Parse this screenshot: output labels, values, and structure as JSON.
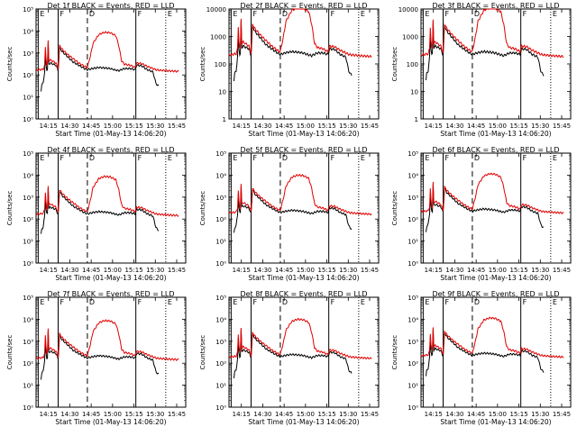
{
  "chart_data": [
    {
      "type": "line",
      "title": "Det  1f BLACK = Events, RED = LLD",
      "ylabel": "Counts/sec",
      "xlabel": "Start Time (01-May-13 14:06:20)",
      "log_min": 0,
      "log_max": 5,
      "yticks": [
        "10⁰",
        "10¹",
        "10²",
        "10³",
        "10⁴",
        "10⁵"
      ]
    },
    {
      "type": "line",
      "title": "Det  2f BLACK = Events, RED = LLD",
      "ylabel": "Counts/sec",
      "xlabel": "Start Time (01-May-13 14:06:20)",
      "log_min": 0,
      "log_max": 4,
      "yticks": [
        "1",
        "10",
        "100",
        "1000",
        "10000"
      ]
    },
    {
      "type": "line",
      "title": "Det  3f BLACK = Events, RED = LLD",
      "ylabel": "Counts/sec",
      "xlabel": "Start Time (01-May-13 14:06:20)",
      "log_min": 0,
      "log_max": 4,
      "yticks": [
        "1",
        "10",
        "100",
        "1000",
        "10000"
      ]
    },
    {
      "type": "line",
      "title": "Det  4f BLACK = Events, RED = LLD",
      "ylabel": "Counts/sec",
      "xlabel": "Start Time (01-May-13 14:06:20)",
      "log_min": 0,
      "log_max": 5,
      "yticks": [
        "10⁰",
        "10¹",
        "10²",
        "10³",
        "10⁴",
        "10⁵"
      ]
    },
    {
      "type": "line",
      "title": "Det  5f BLACK = Events, RED = LLD",
      "ylabel": "Counts/sec",
      "xlabel": "Start Time (01-May-13 14:06:20)",
      "log_min": 0,
      "log_max": 5,
      "yticks": [
        "10⁰",
        "10¹",
        "10²",
        "10³",
        "10⁴",
        "10⁵"
      ]
    },
    {
      "type": "line",
      "title": "Det  6f BLACK = Events, RED = LLD",
      "ylabel": "Counts/sec",
      "xlabel": "Start Time (01-May-13 14:06:20)",
      "log_min": 0,
      "log_max": 5,
      "yticks": [
        "10⁰",
        "10¹",
        "10²",
        "10³",
        "10⁴",
        "10⁵"
      ]
    },
    {
      "type": "line",
      "title": "Det  7f BLACK = Events, RED = LLD",
      "ylabel": "Counts/sec",
      "xlabel": "Start Time (01-May-13 14:06:20)",
      "log_min": 0,
      "log_max": 5,
      "yticks": [
        "10⁰",
        "10¹",
        "10²",
        "10³",
        "10⁴",
        "10⁵"
      ]
    },
    {
      "type": "line",
      "title": "Det  8f BLACK = Events, RED = LLD",
      "ylabel": "Counts/sec",
      "xlabel": "Start Time (01-May-13 14:06:20)",
      "log_min": 0,
      "log_max": 5,
      "yticks": [
        "10⁰",
        "10¹",
        "10²",
        "10³",
        "10⁴",
        "10⁵"
      ]
    },
    {
      "type": "line",
      "title": "Det  9f BLACK = Events, RED = LLD",
      "ylabel": "Counts/sec",
      "xlabel": "Start Time (01-May-13 14:06:20)",
      "log_min": 0,
      "log_max": 5,
      "yticks": [
        "10⁰",
        "10¹",
        "10²",
        "10³",
        "10⁴",
        "10⁵"
      ]
    }
  ],
  "xticks": [
    "14:15",
    "14:30",
    "14:45",
    "15:00",
    "15:15",
    "15:30",
    "15:45"
  ],
  "xtick_minutes": [
    8.67,
    23.67,
    38.67,
    53.67,
    68.67,
    83.67,
    98.67
  ],
  "x_range_minutes": [
    0,
    105
  ],
  "marker_minutes": [
    {
      "t": 1.5,
      "label": "E",
      "style": "solid"
    },
    {
      "t": 15.5,
      "label": "F",
      "style": "solid"
    },
    {
      "t": 36,
      "label": "D",
      "style": "dashed"
    },
    {
      "t": 70,
      "label": "F",
      "style": "solid"
    },
    {
      "t": 91,
      "label": "E",
      "style": "dotted"
    }
  ],
  "series_styles": [
    {
      "name": "Events",
      "color": "#000000"
    },
    {
      "name": "LLD",
      "color": "#e00000"
    }
  ],
  "profiles": {
    "lld_log": [
      [
        0,
        2.28
      ],
      [
        3,
        2.3
      ],
      [
        5,
        2.32
      ],
      [
        6,
        2.5
      ],
      [
        6.5,
        3.3
      ],
      [
        7.2,
        2.6
      ],
      [
        8,
        2.5
      ],
      [
        8.5,
        3.6
      ],
      [
        9,
        2.7
      ],
      [
        10,
        2.75
      ],
      [
        14,
        2.6
      ],
      [
        15.5,
        2.35
      ],
      [
        16.5,
        3.4
      ],
      [
        18,
        3.25
      ],
      [
        22,
        3.0
      ],
      [
        26,
        2.8
      ],
      [
        30,
        2.6
      ],
      [
        34,
        2.45
      ],
      [
        36,
        2.4
      ],
      [
        38,
        2.9
      ],
      [
        40,
        3.5
      ],
      [
        44,
        3.9
      ],
      [
        48,
        4.0
      ],
      [
        52,
        3.98
      ],
      [
        56,
        3.85
      ],
      [
        58,
        3.4
      ],
      [
        60,
        2.7
      ],
      [
        62,
        2.55
      ],
      [
        66,
        2.5
      ],
      [
        69.5,
        2.4
      ],
      [
        70.5,
        2.6
      ],
      [
        74,
        2.58
      ],
      [
        78,
        2.45
      ],
      [
        82,
        2.35
      ],
      [
        84,
        2.3
      ],
      [
        86,
        2.28
      ],
      [
        92,
        2.25
      ],
      [
        100,
        2.22
      ]
    ],
    "events_log": [
      [
        3.5,
        1.35
      ],
      [
        4,
        1.6
      ],
      [
        5,
        1.7
      ],
      [
        6,
        2.2
      ],
      [
        6.5,
        3.0
      ],
      [
        7.2,
        2.3
      ],
      [
        8,
        2.3
      ],
      [
        8.5,
        3.5
      ],
      [
        9,
        2.55
      ],
      [
        10,
        2.6
      ],
      [
        14,
        2.5
      ],
      [
        15.5,
        2.25
      ],
      [
        16.5,
        3.35
      ],
      [
        18,
        3.15
      ],
      [
        22,
        2.9
      ],
      [
        26,
        2.65
      ],
      [
        30,
        2.5
      ],
      [
        34,
        2.35
      ],
      [
        36,
        2.3
      ],
      [
        40,
        2.36
      ],
      [
        44,
        2.4
      ],
      [
        48,
        2.38
      ],
      [
        52,
        2.35
      ],
      [
        56,
        2.28
      ],
      [
        58,
        2.25
      ],
      [
        60,
        2.3
      ],
      [
        62,
        2.35
      ],
      [
        66,
        2.35
      ],
      [
        69.5,
        2.3
      ],
      [
        70.5,
        2.5
      ],
      [
        74,
        2.48
      ],
      [
        78,
        2.3
      ],
      [
        82,
        2.2
      ],
      [
        84,
        1.7
      ],
      [
        85,
        1.6
      ],
      [
        86,
        1.55
      ]
    ]
  }
}
